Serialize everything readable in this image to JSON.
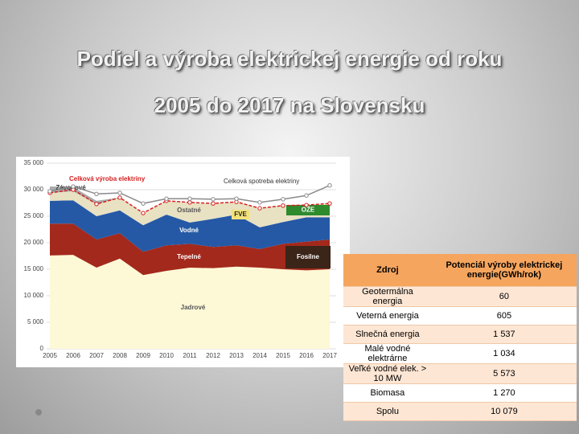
{
  "title": [
    "Podiel a výroba elektrickej energie od roku",
    "2005 do 2017  na Slovensku"
  ],
  "chart_data": {
    "type": "stacked-area",
    "categories": [
      "2005",
      "2006",
      "2007",
      "2008",
      "2009",
      "2010",
      "2011",
      "2012",
      "2013",
      "2014",
      "2015",
      "2016",
      "2017"
    ],
    "series": [
      {
        "name": "Jadrové",
        "color": "#fdf8d6",
        "values": [
          17600,
          17700,
          15300,
          17000,
          13900,
          14700,
          15300,
          15200,
          15500,
          15300,
          15000,
          14800,
          15000
        ]
      },
      {
        "name": "Tepelné",
        "color": "#a3291c",
        "values": [
          6000,
          5900,
          5300,
          4800,
          4400,
          4800,
          4500,
          4000,
          4000,
          3500,
          4800,
          5400,
          5600
        ]
      },
      {
        "name": "Vodné",
        "color": "#2559a6",
        "values": [
          4300,
          4400,
          4400,
          4300,
          5000,
          5800,
          4000,
          5300,
          5800,
          4100,
          4100,
          4600,
          4200
        ]
      },
      {
        "name": "Ostatné",
        "color": "#e8e1c2",
        "values": [
          1500,
          1700,
          2300,
          2400,
          2300,
          2600,
          3800,
          2900,
          2400,
          3600,
          3100,
          2300,
          2600
        ]
      },
      {
        "name": "Závodové",
        "color": "#a9a9a9",
        "values": [
          1200,
          800,
          600,
          0,
          0,
          0,
          0,
          0,
          0,
          0,
          0,
          0,
          0
        ]
      }
    ],
    "lines": [
      {
        "name": "Celková výroba elektriny",
        "color": "#d42020",
        "values": [
          29400,
          30000,
          27300,
          28500,
          25600,
          27900,
          27600,
          27400,
          27700,
          26500,
          27000,
          27100,
          27400
        ]
      },
      {
        "name": "Celková spotreba elektriny",
        "color": "#8a8a8a",
        "values": [
          29700,
          30600,
          29200,
          29400,
          27400,
          28300,
          28300,
          28200,
          28300,
          27600,
          28200,
          28900,
          30800
        ]
      }
    ],
    "annotations": [
      "FVE",
      "OŽE",
      "Fosílne"
    ],
    "ylim": [
      0,
      35000
    ],
    "yticks": [
      0,
      {
        "value": 5000,
        "label": "5 000"
      },
      {
        "value": 10000,
        "label": "10 000"
      },
      {
        "value": 15000,
        "label": "15 000"
      },
      {
        "value": 20000,
        "label": "20 000"
      },
      {
        "value": 25000,
        "label": "25 000"
      },
      {
        "value": 30000,
        "label": "30 000"
      },
      {
        "value": 35000,
        "label": "35 000"
      }
    ],
    "grid": true
  },
  "table": {
    "header": [
      "Zdroj",
      "Potenciál výroby elektrickej energie(GWh/rok)"
    ],
    "rows": [
      [
        "Geotermálna energia",
        "60"
      ],
      [
        "Veterná energia",
        "605"
      ],
      [
        "Slnečná energia",
        "1 537"
      ],
      [
        "Malé vodné elektrárne",
        "1 034"
      ],
      [
        "Veľké vodné elek. > 10 MW",
        "5 573"
      ],
      [
        "Biomasa",
        "1 270"
      ],
      [
        "Spolu",
        "10 079"
      ]
    ]
  }
}
